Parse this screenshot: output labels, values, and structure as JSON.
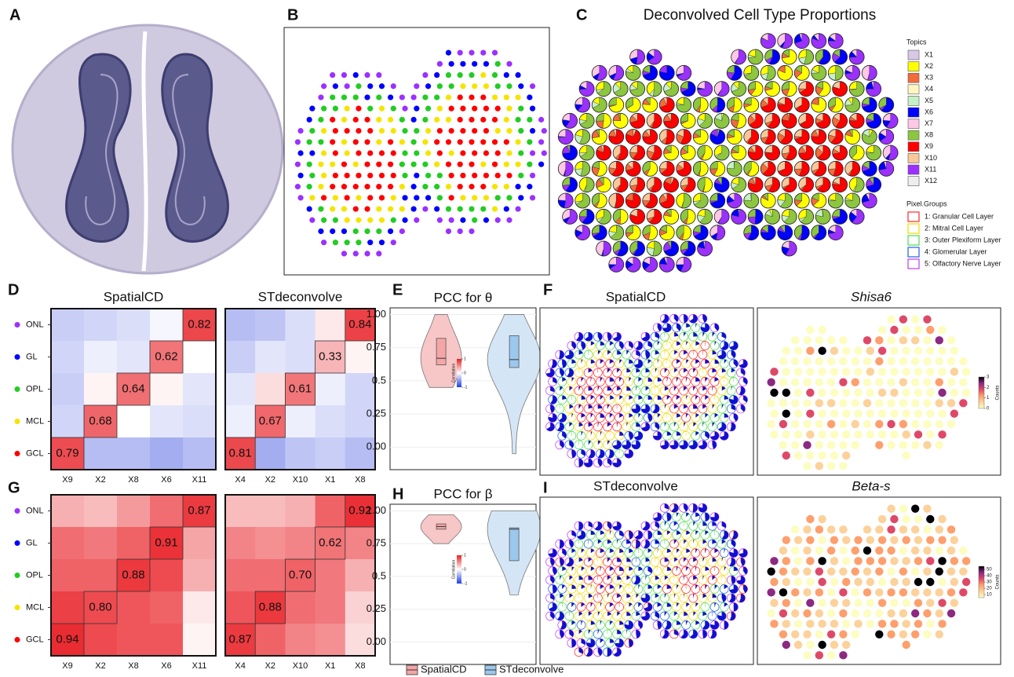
{
  "panel_labels": [
    "A",
    "B",
    "C",
    "D",
    "E",
    "F",
    "G",
    "H",
    "I"
  ],
  "spatial": {
    "C": {
      "title": "Deconvolved Cell Type Proportions",
      "topics": {
        "title": "Topics",
        "items": [
          {
            "name": "X1",
            "color": "#d8c8e6"
          },
          {
            "name": "X2",
            "color": "#ffff00"
          },
          {
            "name": "X3",
            "color": "#f26b3a"
          },
          {
            "name": "X4",
            "color": "#fff6c2"
          },
          {
            "name": "X5",
            "color": "#c6f0c6"
          },
          {
            "name": "X6",
            "color": "#0000ff"
          },
          {
            "name": "X7",
            "color": "#ffc8e6"
          },
          {
            "name": "X8",
            "color": "#8dc63f"
          },
          {
            "name": "X9",
            "color": "#ff0000"
          },
          {
            "name": "X10",
            "color": "#f8c89a"
          },
          {
            "name": "X11",
            "color": "#9b30ff"
          },
          {
            "name": "X12",
            "color": "#eeeeee"
          }
        ]
      },
      "groups": {
        "title": "Pixel.Groups",
        "items": [
          {
            "name": "1: Granular Cell Layer",
            "color": "#ff2a2a"
          },
          {
            "name": "2: Mitral Cell Layer",
            "color": "#f5d800"
          },
          {
            "name": "3: Outer Plexiform Layer",
            "color": "#4ddc4d"
          },
          {
            "name": "4: Glomerular Layer",
            "color": "#2060e0"
          },
          {
            "name": "5: Olfactory Nerve Layer",
            "color": "#c03cf0"
          }
        ]
      }
    },
    "F": {
      "title": "SpatialCD"
    },
    "I": {
      "title": "STdeconvolve"
    },
    "Shisa6": {
      "title": "Shisa6",
      "colorbar": {
        "title": "Counts",
        "lim": [
          0,
          3
        ],
        "ticks": [
          0,
          1,
          2,
          3
        ]
      }
    },
    "Beta": {
      "title": "Beta-s",
      "colorbar": {
        "title": "Counts",
        "lim": [
          5,
          55
        ],
        "ticks": [
          10,
          20,
          30,
          40,
          50
        ]
      }
    }
  },
  "chart_data": [
    {
      "type": "heatmap",
      "title": "SpatialCD",
      "rows": [
        "ONL",
        "GL",
        "OPL",
        "MCL",
        "GCL"
      ],
      "row_colors": [
        "#9b30ff",
        "#0000ff",
        "#22cc22",
        "#f5e400",
        "#ff0000"
      ],
      "columns": [
        "X9",
        "X2",
        "X8",
        "X6",
        "X11"
      ],
      "clim": [
        -1,
        1
      ],
      "values": [
        [
          -0.3,
          -0.25,
          -0.2,
          -0.05,
          0.82
        ],
        [
          -0.25,
          -0.1,
          -0.15,
          0.62,
          0.0
        ],
        [
          -0.3,
          0.05,
          0.64,
          0.05,
          -0.15
        ],
        [
          -0.25,
          0.68,
          0.0,
          -0.15,
          -0.2
        ],
        [
          0.79,
          -0.4,
          -0.4,
          -0.5,
          -0.4
        ]
      ],
      "value_labels": [
        [
          null,
          null,
          null,
          null,
          "0.82"
        ],
        [
          null,
          null,
          null,
          "0.62",
          null
        ],
        [
          null,
          null,
          "0.64",
          null,
          null
        ],
        [
          null,
          "0.68",
          null,
          null,
          null
        ],
        [
          "0.79",
          null,
          null,
          null,
          null
        ]
      ]
    },
    {
      "type": "heatmap",
      "title": "STdeconvolve",
      "columns": [
        "X4",
        "X2",
        "X10",
        "X1",
        "X8"
      ],
      "clim": [
        -1,
        1
      ],
      "values": [
        [
          -0.4,
          -0.35,
          -0.2,
          0.1,
          0.84
        ],
        [
          -0.3,
          -0.15,
          -0.2,
          0.33,
          0.05
        ],
        [
          -0.15,
          0.15,
          0.61,
          -0.1,
          -0.25
        ],
        [
          -0.1,
          0.67,
          -0.1,
          -0.2,
          -0.25
        ],
        [
          0.81,
          -0.5,
          -0.35,
          -0.3,
          -0.4
        ]
      ],
      "value_labels": [
        [
          null,
          null,
          null,
          null,
          "0.84"
        ],
        [
          null,
          null,
          null,
          "0.33",
          null
        ],
        [
          null,
          null,
          "0.61",
          null,
          null
        ],
        [
          null,
          "0.67",
          null,
          null,
          null
        ],
        [
          "0.81",
          null,
          null,
          null,
          null
        ]
      ]
    },
    {
      "type": "violin",
      "title": "PCC for θ",
      "ylim": [
        -0.17,
        1.05
      ],
      "yticks": [
        {
          "value": 0,
          "label": "0.00"
        },
        {
          "value": 0.25,
          "label": "0.25"
        },
        0.5,
        {
          "value": 0.75,
          "label": "0.75"
        },
        {
          "value": 1,
          "label": "1.00"
        }
      ],
      "colorbar": {
        "title": "Correlation",
        "lim": [
          -1,
          1
        ],
        "ticks": [
          1,
          0,
          -1
        ]
      },
      "series": [
        {
          "name": "SpatialCD",
          "color": "#f7c6c6",
          "box_color": "#f4a6a6",
          "min": 0.45,
          "q1": 0.62,
          "median": 0.67,
          "q3": 0.82,
          "max": 1.0
        },
        {
          "name": "STdeconvolve",
          "color": "#d4e6f6",
          "box_color": "#9cc8ee",
          "min": -0.05,
          "q1": 0.6,
          "median": 0.66,
          "q3": 0.84,
          "max": 1.0
        }
      ]
    },
    {
      "type": "heatmap",
      "rows": [
        "ONL",
        "GL",
        "OPL",
        "MCL",
        "GCL"
      ],
      "row_colors": [
        "#9b30ff",
        "#0000ff",
        "#22cc22",
        "#f5e400",
        "#ff0000"
      ],
      "columns": [
        "X9",
        "X2",
        "X8",
        "X6",
        "X11"
      ],
      "clim": [
        -1,
        1
      ],
      "values": [
        [
          0.35,
          0.3,
          0.45,
          0.65,
          0.87
        ],
        [
          0.65,
          0.6,
          0.7,
          0.91,
          0.4
        ],
        [
          0.7,
          0.7,
          0.88,
          0.8,
          0.35
        ],
        [
          0.85,
          0.8,
          0.75,
          0.7,
          0.1
        ],
        [
          0.94,
          0.8,
          0.75,
          0.75,
          0.05
        ]
      ],
      "value_labels": [
        [
          null,
          null,
          null,
          null,
          "0.87"
        ],
        [
          null,
          null,
          null,
          "0.91",
          null
        ],
        [
          null,
          null,
          "0.88",
          null,
          null
        ],
        [
          null,
          "0.80",
          null,
          null,
          null
        ],
        [
          "0.94",
          null,
          null,
          null,
          null
        ]
      ]
    },
    {
      "type": "heatmap",
      "columns": [
        "X4",
        "X2",
        "X10",
        "X1",
        "X8"
      ],
      "clim": [
        -1,
        1
      ],
      "values": [
        [
          0.3,
          0.3,
          0.35,
          0.7,
          0.92
        ],
        [
          0.55,
          0.5,
          0.55,
          0.62,
          0.55
        ],
        [
          0.65,
          0.65,
          0.7,
          0.6,
          0.35
        ],
        [
          0.75,
          0.88,
          0.65,
          0.6,
          0.2
        ],
        [
          0.87,
          0.7,
          0.55,
          0.5,
          0.15
        ]
      ],
      "value_labels": [
        [
          null,
          null,
          null,
          null,
          "0.92"
        ],
        [
          null,
          null,
          null,
          "0.62",
          null
        ],
        [
          null,
          null,
          "0.70",
          null,
          null
        ],
        [
          null,
          "0.88",
          null,
          null,
          null
        ],
        [
          "0.87",
          null,
          null,
          null,
          null
        ]
      ]
    },
    {
      "type": "violin",
      "title": "PCC for β",
      "ylim": [
        -0.17,
        1.05
      ],
      "yticks": [
        {
          "value": 0,
          "label": "0.00"
        },
        {
          "value": 0.25,
          "label": "0.25"
        },
        0.5,
        {
          "value": 0.75,
          "label": "0.75"
        },
        {
          "value": 1,
          "label": "1.00"
        }
      ],
      "colorbar": {
        "title": "Correlation",
        "lim": [
          -1,
          1
        ],
        "ticks": [
          1,
          0,
          -1
        ]
      },
      "series": [
        {
          "name": "SpatialCD",
          "color": "#f7c6c6",
          "box_color": "#f4a6a6",
          "min": 0.75,
          "q1": 0.86,
          "median": 0.88,
          "q3": 0.9,
          "max": 0.97
        },
        {
          "name": "STdeconvolve",
          "color": "#d4e6f6",
          "box_color": "#9cc8ee",
          "min": 0.36,
          "q1": 0.62,
          "median": 0.86,
          "q3": 0.87,
          "max": 1.0
        }
      ]
    }
  ]
}
